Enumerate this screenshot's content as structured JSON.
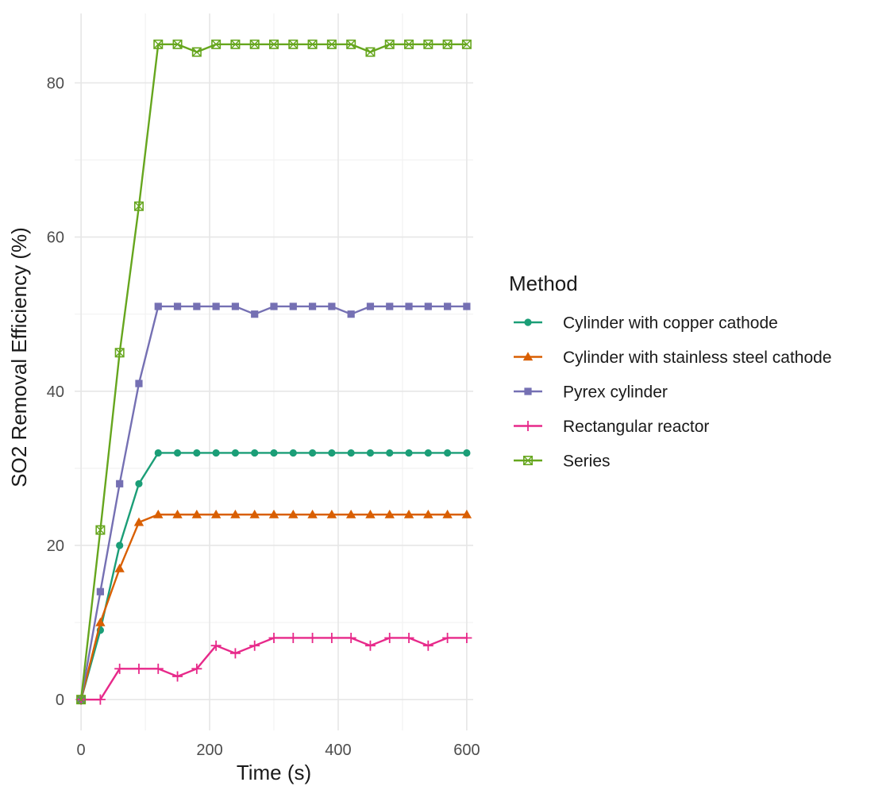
{
  "chart_data": {
    "type": "line",
    "title": "",
    "xlabel": "Time (s)",
    "ylabel": "SO2 Removal Efficiency (%)",
    "xlim": [
      -10,
      610
    ],
    "ylim": [
      -4,
      89
    ],
    "x_ticks": [
      0,
      200,
      400,
      600
    ],
    "y_ticks": [
      0,
      20,
      40,
      60,
      80
    ],
    "x_tick_labels": [
      "0",
      "200",
      "400",
      "600"
    ],
    "y_tick_labels": [
      "0",
      "20",
      "40",
      "60",
      "80"
    ],
    "grid": true,
    "legend": {
      "title": "Method",
      "position": "right"
    },
    "x": [
      0,
      30,
      60,
      90,
      120,
      150,
      180,
      210,
      240,
      270,
      300,
      330,
      360,
      390,
      420,
      450,
      480,
      510,
      540,
      570,
      600
    ],
    "series": [
      {
        "name": "Cylinder with copper cathode",
        "color": "#1b9e77",
        "marker": "circle",
        "values": [
          0,
          9,
          20,
          28,
          32,
          32,
          32,
          32,
          32,
          32,
          32,
          32,
          32,
          32,
          32,
          32,
          32,
          32,
          32,
          32,
          32
        ]
      },
      {
        "name": "Cylinder with stainless steel cathode",
        "color": "#d95f02",
        "marker": "triangle",
        "values": [
          0,
          10,
          17,
          23,
          24,
          24,
          24,
          24,
          24,
          24,
          24,
          24,
          24,
          24,
          24,
          24,
          24,
          24,
          24,
          24,
          24
        ]
      },
      {
        "name": "Pyrex cylinder",
        "color": "#7570b3",
        "marker": "square",
        "values": [
          0,
          14,
          28,
          41,
          51,
          51,
          51,
          51,
          51,
          50,
          51,
          51,
          51,
          51,
          50,
          51,
          51,
          51,
          51,
          51,
          51
        ]
      },
      {
        "name": "Rectangular reactor",
        "color": "#e7298a",
        "marker": "plus",
        "values": [
          0,
          0,
          4,
          4,
          4,
          3,
          4,
          7,
          6,
          7,
          8,
          8,
          8,
          8,
          8,
          7,
          8,
          8,
          7,
          8,
          8
        ]
      },
      {
        "name": "Series",
        "color": "#66a61e",
        "marker": "square-cross",
        "values": [
          0,
          22,
          45,
          64,
          85,
          85,
          84,
          85,
          85,
          85,
          85,
          85,
          85,
          85,
          85,
          84,
          85,
          85,
          85,
          85,
          85
        ]
      }
    ]
  }
}
